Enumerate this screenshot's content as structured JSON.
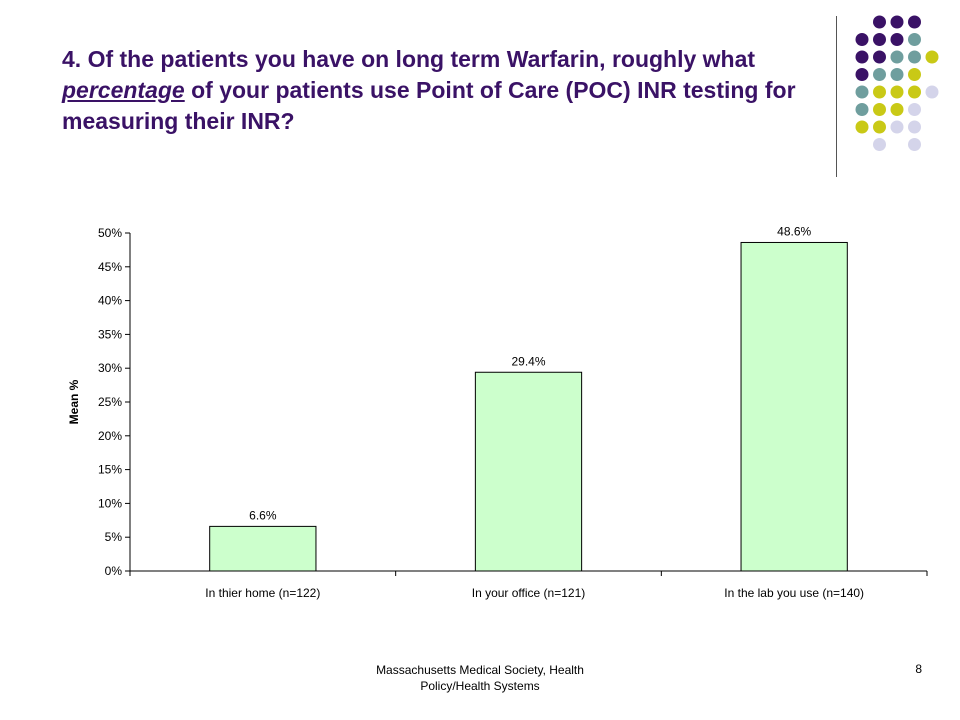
{
  "slide": {
    "title_part1": "4. Of the patients you have on long term Warfarin, roughly what ",
    "title_emphasis": "percentage",
    "title_part2": " of your patients use Point of Care (POC) INR testing for measuring their INR?",
    "footer_line1": "Massachusetts Medical Society, Health",
    "footer_line2": "Policy/Health Systems",
    "page_number": "8"
  },
  "colors": {
    "title": "#3a1266",
    "bar_fill": "#ccffcc",
    "bar_stroke": "#000000",
    "dot_purple": "#3a1266",
    "dot_teal": "#6f9e9e",
    "dot_yellow": "#c9c916",
    "dot_lavender": "#d4d4ea"
  },
  "chart_data": {
    "type": "bar",
    "categories": [
      "In thier home (n=122)",
      "In your office (n=121)",
      "In the lab you use (n=140)"
    ],
    "values": [
      6.6,
      29.4,
      48.6
    ],
    "value_labels": [
      "6.6%",
      "29.4%",
      "48.6%"
    ],
    "ylabel": "Mean %",
    "ylim": [
      0,
      50
    ],
    "yticks": [
      0,
      5,
      10,
      15,
      20,
      25,
      30,
      35,
      40,
      45,
      50
    ],
    "ytick_labels": [
      "0%",
      "5%",
      "10%",
      "15%",
      "20%",
      "25%",
      "30%",
      "35%",
      "40%",
      "45%",
      "50%"
    ],
    "grid": false,
    "legend": "none"
  }
}
